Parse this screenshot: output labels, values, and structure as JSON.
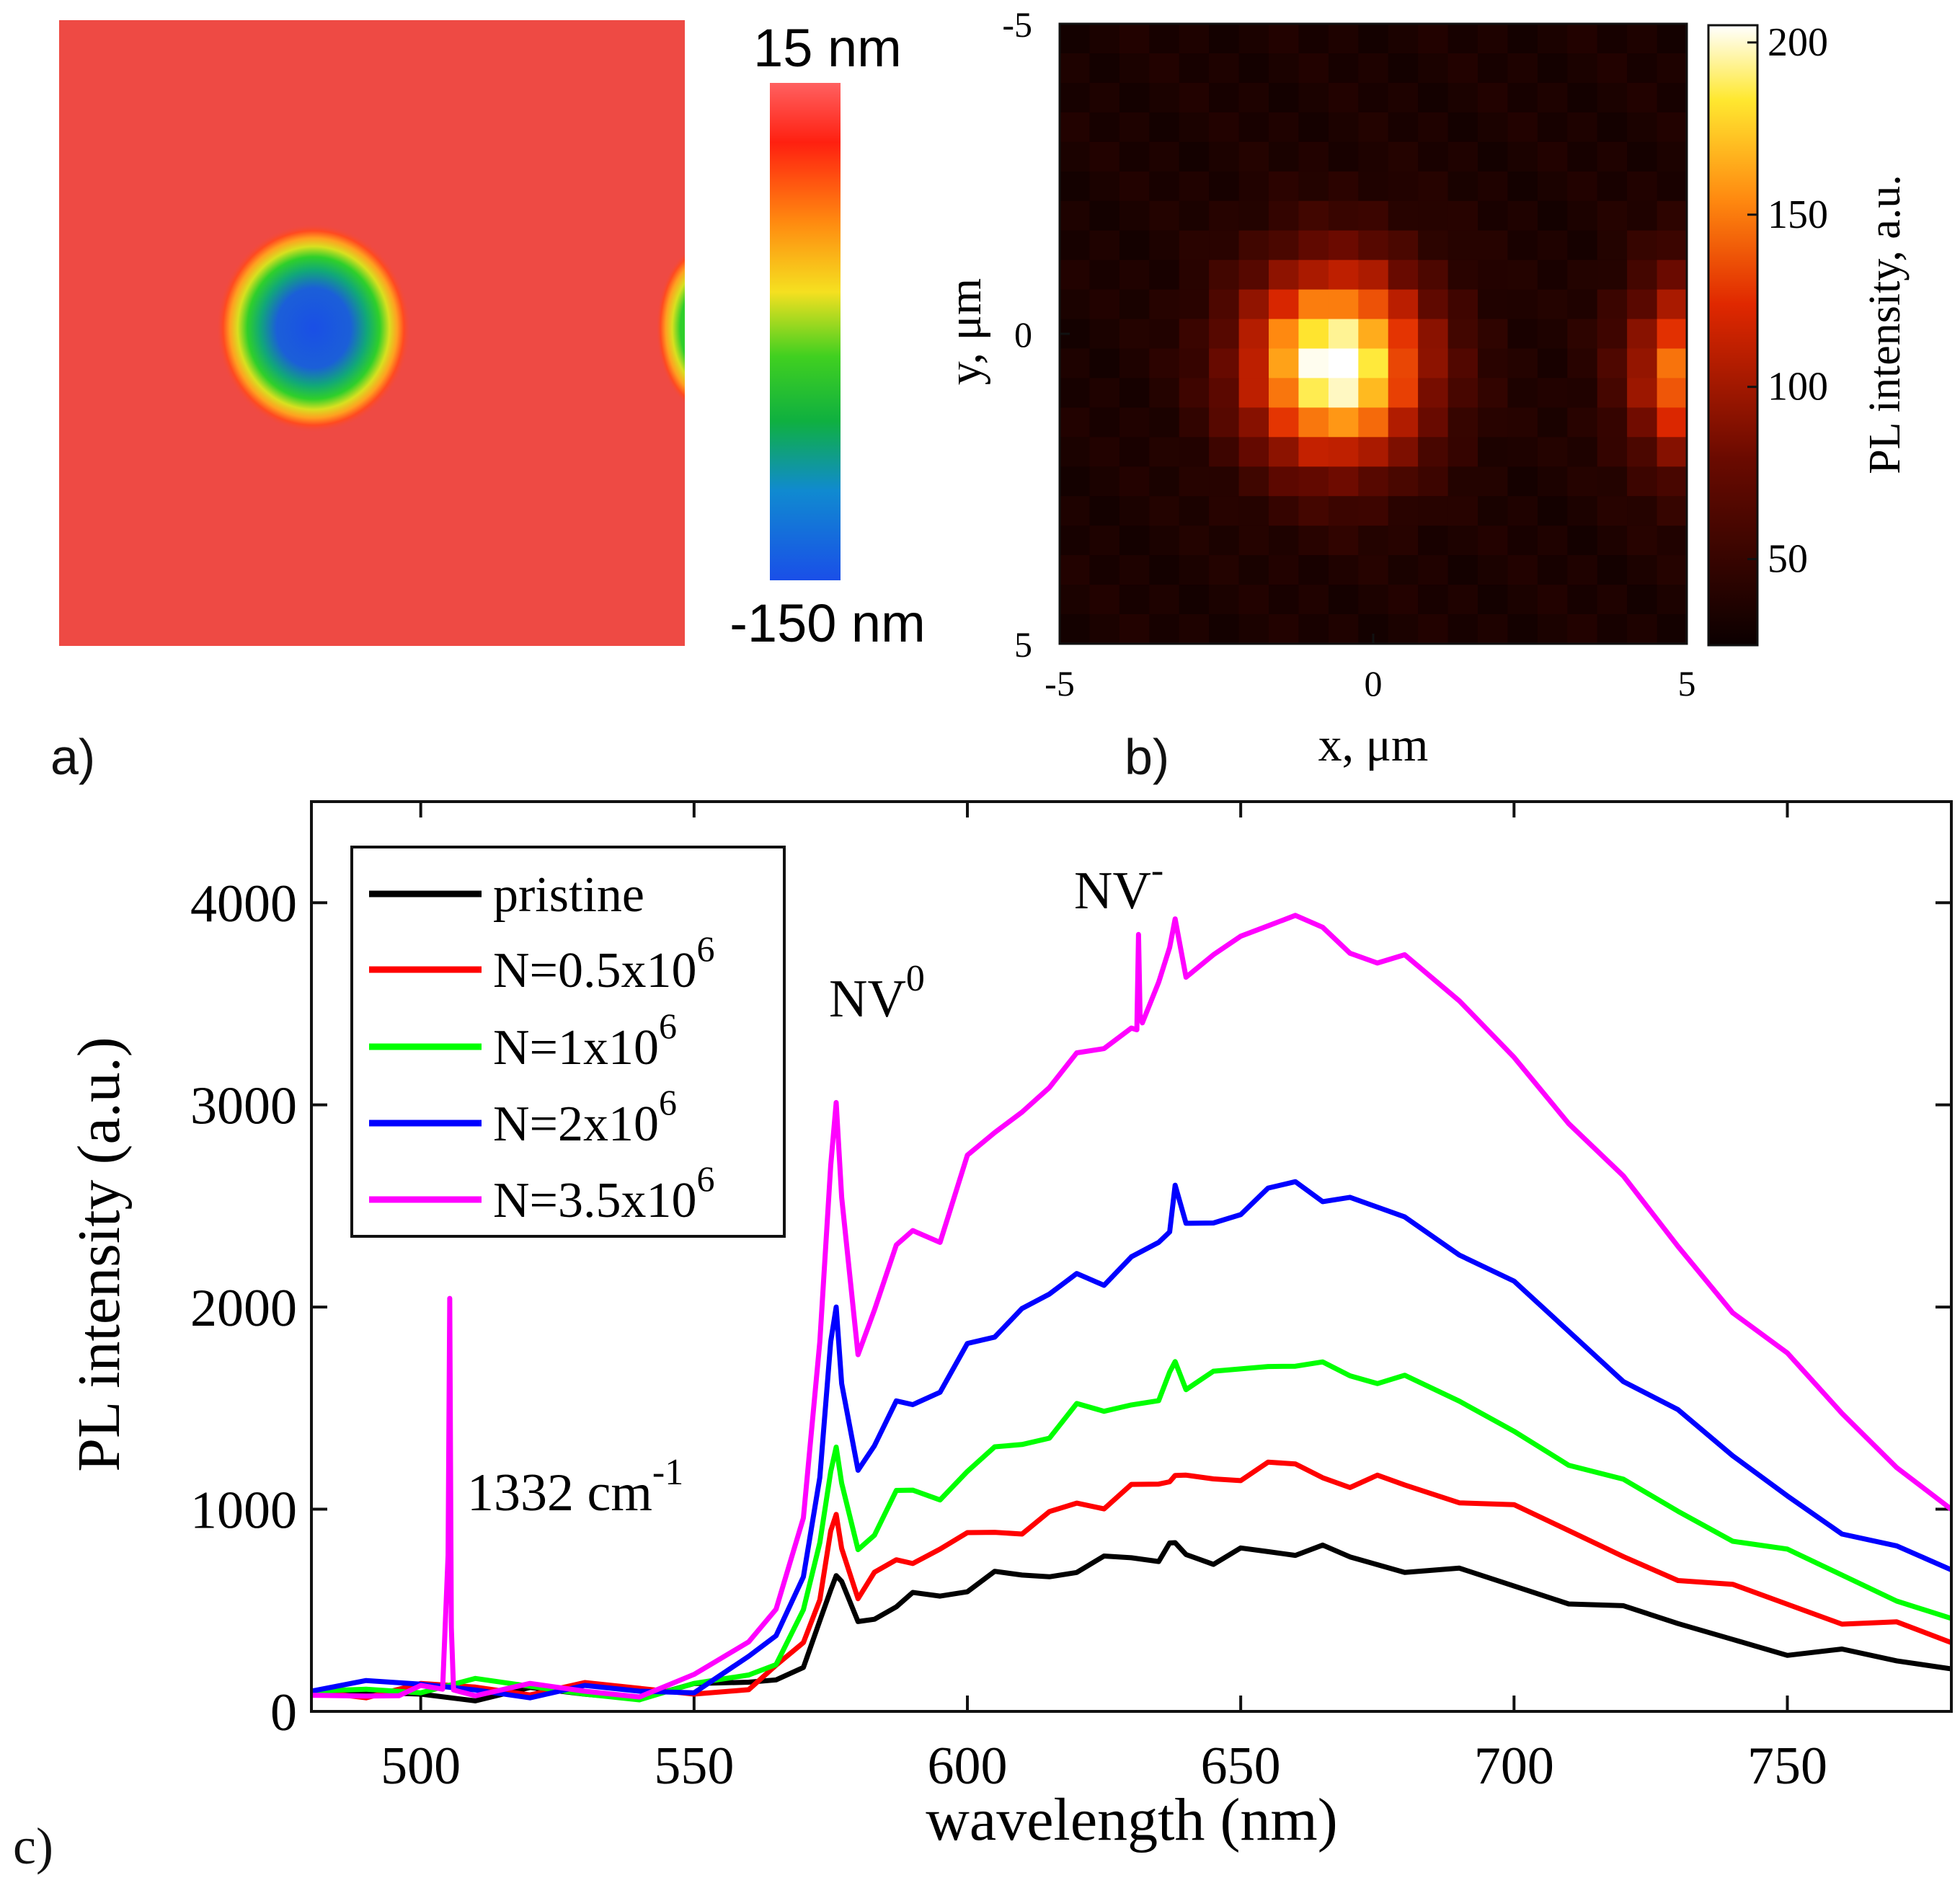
{
  "panels": {
    "a": {
      "label": "a)",
      "colorbar_top": "15 nm",
      "colorbar_bottom": "-150 nm",
      "colorbar_range_nm": [
        -150,
        15
      ],
      "background_color": "#ee4a44"
    },
    "b": {
      "label": "b)",
      "xlabel": "x, μm",
      "ylabel": "y, μm",
      "xticks": [
        -5,
        0,
        5
      ],
      "yticks": [
        -5,
        0,
        5
      ],
      "xlim": [
        -5,
        5
      ],
      "ylim": [
        -5,
        5
      ],
      "colorbar_label": "PL intensity, a.u.",
      "colorbar_ticks": [
        50,
        100,
        150,
        200
      ],
      "colorbar_range": [
        25,
        205
      ]
    },
    "c": {
      "label": "c)"
    }
  },
  "chart_data": {
    "type": "line",
    "title": "",
    "xlabel": "wavelength (nm)",
    "ylabel": "PL intensity (a.u.)",
    "xlim": [
      480,
      780
    ],
    "ylim": [
      0,
      4500
    ],
    "xticks": [
      500,
      550,
      600,
      650,
      700,
      750
    ],
    "yticks": [
      0,
      1000,
      2000,
      3000,
      4000
    ],
    "legend_location": "top-left",
    "series": [
      {
        "name": "pristine",
        "legend_main": "pristine",
        "legend_exp": "",
        "color": "#000000",
        "x": [
          480,
          490,
          500,
          510,
          520,
          530,
          540,
          550,
          560,
          565,
          570,
          573,
          575,
          576,
          577,
          580,
          583,
          587,
          590,
          595,
          600,
          605,
          610,
          615,
          620,
          625,
          630,
          635,
          637,
          638,
          640,
          645,
          650,
          655,
          660,
          665,
          670,
          675,
          680,
          690,
          700,
          710,
          720,
          730,
          740,
          750,
          760,
          770,
          780
        ],
        "y": [
          80,
          80,
          100,
          95,
          90,
          85,
          90,
          95,
          130,
          170,
          260,
          420,
          600,
          700,
          600,
          430,
          470,
          560,
          560,
          570,
          620,
          650,
          660,
          680,
          730,
          740,
          760,
          770,
          790,
          820,
          790,
          770,
          780,
          790,
          800,
          780,
          750,
          740,
          730,
          680,
          620,
          560,
          480,
          420,
          370,
          320,
          280,
          250,
          210
        ]
      },
      {
        "name": "N=0.5x10^6",
        "legend_main": "N=0.5x10",
        "legend_exp": "6",
        "color": "#ff0000",
        "x": [
          480,
          490,
          500,
          510,
          520,
          530,
          540,
          550,
          560,
          565,
          570,
          573,
          575,
          576,
          577,
          580,
          583,
          587,
          590,
          595,
          600,
          605,
          610,
          615,
          620,
          625,
          630,
          635,
          637,
          638,
          640,
          645,
          650,
          655,
          660,
          665,
          670,
          675,
          680,
          690,
          700,
          710,
          720,
          730,
          740,
          750,
          760,
          770,
          780
        ],
        "y": [
          100,
          110,
          110,
          120,
          110,
          100,
          100,
          100,
          150,
          200,
          340,
          580,
          850,
          960,
          820,
          600,
          660,
          750,
          760,
          760,
          870,
          900,
          920,
          960,
          1030,
          1030,
          1080,
          1110,
          1150,
          1210,
          1140,
          1150,
          1170,
          1190,
          1210,
          1170,
          1150,
          1140,
          1120,
          1060,
          980,
          880,
          780,
          690,
          600,
          530,
          460,
          400,
          340
        ]
      },
      {
        "name": "N=1x10^6",
        "legend_main": "N=1x10",
        "legend_exp": "6",
        "color": "#00ff00",
        "x": [
          480,
          490,
          500,
          510,
          520,
          530,
          540,
          550,
          560,
          565,
          570,
          573,
          575,
          576,
          577,
          580,
          583,
          587,
          590,
          595,
          600,
          605,
          610,
          615,
          620,
          625,
          630,
          635,
          637,
          638,
          640,
          645,
          650,
          655,
          660,
          665,
          670,
          675,
          680,
          690,
          700,
          710,
          720,
          730,
          740,
          750,
          760,
          770,
          780
        ],
        "y": [
          100,
          110,
          120,
          120,
          110,
          100,
          100,
          110,
          180,
          260,
          460,
          820,
          1200,
          1350,
          1100,
          800,
          900,
          1050,
          1080,
          1060,
          1230,
          1280,
          1320,
          1380,
          1480,
          1470,
          1530,
          1580,
          1650,
          1730,
          1620,
          1640,
          1680,
          1720,
          1750,
          1700,
          1660,
          1650,
          1620,
          1520,
          1400,
          1260,
          1120,
          990,
          870,
          760,
          660,
          560,
          460
        ]
      },
      {
        "name": "N=2x10^6",
        "legend_main": "N=2x10",
        "legend_exp": "6",
        "color": "#0000ff",
        "x": [
          480,
          490,
          500,
          510,
          520,
          530,
          540,
          550,
          560,
          565,
          570,
          573,
          575,
          576,
          577,
          580,
          583,
          587,
          590,
          595,
          600,
          605,
          610,
          615,
          620,
          625,
          630,
          635,
          637,
          638,
          640,
          645,
          650,
          655,
          660,
          665,
          670,
          675,
          680,
          690,
          700,
          710,
          720,
          730,
          740,
          750,
          760,
          770,
          780
        ],
        "y": [
          100,
          110,
          120,
          120,
          110,
          100,
          100,
          120,
          230,
          360,
          680,
          1200,
          1800,
          2000,
          1650,
          1150,
          1300,
          1550,
          1560,
          1550,
          1820,
          1880,
          1950,
          2050,
          2180,
          2150,
          2220,
          2320,
          2400,
          2560,
          2400,
          2430,
          2500,
          2560,
          2620,
          2550,
          2500,
          2480,
          2460,
          2300,
          2100,
          1880,
          1660,
          1450,
          1250,
          1080,
          920,
          790,
          700
        ]
      },
      {
        "name": "N=3.5x10^6",
        "legend_main": "N=3.5x10",
        "legend_exp": "6",
        "color": "#ff00ff",
        "x": [
          480,
          490,
          496,
          500,
          504,
          505,
          505.3,
          505.6,
          506,
          510,
          520,
          530,
          540,
          550,
          560,
          565,
          570,
          573,
          575,
          576,
          577,
          580,
          583,
          587,
          590,
          595,
          600,
          605,
          610,
          615,
          620,
          625,
          630,
          631,
          631.3,
          631.6,
          632,
          635,
          637,
          638,
          640,
          645,
          650,
          655,
          660,
          665,
          670,
          675,
          680,
          690,
          700,
          710,
          720,
          730,
          740,
          750,
          760,
          770,
          780
        ],
        "y": [
          80,
          90,
          120,
          100,
          110,
          800,
          2000,
          400,
          120,
          120,
          110,
          100,
          100,
          140,
          330,
          520,
          1000,
          1800,
          2700,
          3040,
          2500,
          1750,
          2000,
          2350,
          2350,
          2320,
          2780,
          2820,
          2950,
          3100,
          3300,
          3250,
          3380,
          3400,
          3800,
          3420,
          3420,
          3650,
          3750,
          3920,
          3660,
          3700,
          3820,
          3900,
          3980,
          3850,
          3750,
          3730,
          3700,
          3500,
          3250,
          2950,
          2620,
          2300,
          2000,
          1730,
          1460,
          1220,
          1000
        ]
      }
    ],
    "annotations": [
      {
        "main": "1332 cm",
        "sup": "-1"
      },
      {
        "main": "NV",
        "sup": "0"
      },
      {
        "main": "NV",
        "sup": "-"
      }
    ]
  }
}
